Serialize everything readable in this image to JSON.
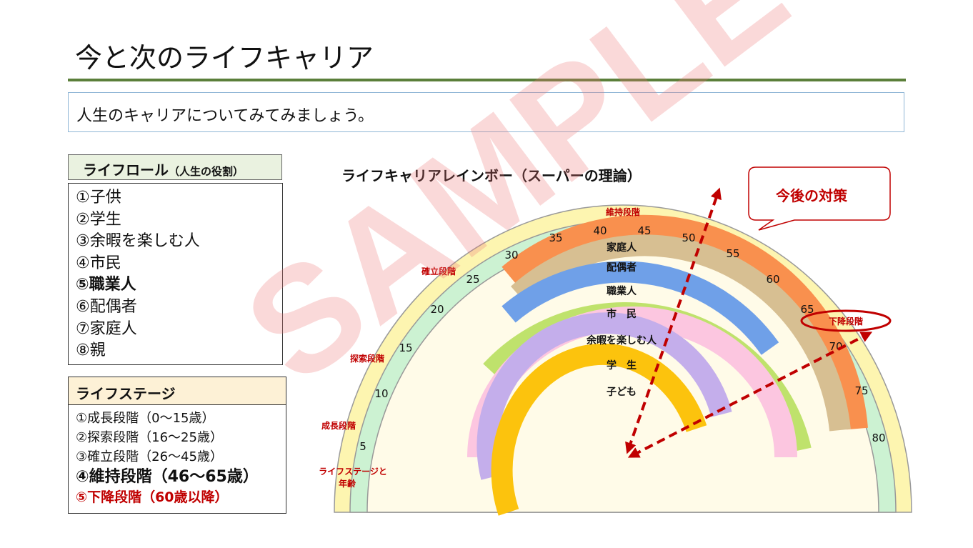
{
  "title": "今と次のライフキャリア",
  "subtitle": "人生のキャリアについてみてみましょう。",
  "life_role": {
    "heading": "ライフロール",
    "heading_note": "（人生の役割）",
    "items": [
      "①子供",
      "②学生",
      "③余暇を楽しむ人",
      "④市民",
      "⑤職業人",
      "⑥配偶者",
      "⑦家庭人",
      "⑧親"
    ]
  },
  "life_stage": {
    "heading": "ライフステージ",
    "items": [
      "①成長段階（0～15歳）",
      "②探索段階（16～25歳）",
      "③確立段階（26～45歳）",
      "④維持段階（46～65歳）",
      "⑤下降段階（60歳以降）"
    ]
  },
  "rainbow": {
    "title": "ライフキャリアレインボー（スーパーの理論）",
    "ages": [
      "5",
      "10",
      "15",
      "20",
      "25",
      "30",
      "35",
      "40",
      "45",
      "50",
      "55",
      "60",
      "65",
      "70",
      "75",
      "80"
    ],
    "roles": [
      "家庭人",
      "配偶者",
      "職業人",
      "市　民",
      "余暇を楽しむ人",
      "学　生",
      "子ども"
    ],
    "stage_labels": [
      "維持段階",
      "確立段階",
      "探索段階",
      "成長段階",
      "下降段階"
    ],
    "axis_label_line1": "ライフステージと",
    "axis_label_line2": "年齢",
    "callout": "今後の対策",
    "colors": {
      "outer_band": "#fdf5b0",
      "age_band": "#ccf2d2",
      "家庭人": "#f9904e",
      "配偶者": "#d7bf92",
      "職業人": "#6fa0e8",
      "市民": "#bfe26c",
      "余暇を楽しむ人": "#fcc6e0",
      "学生": "#c4aeeb",
      "子ども": "#fcc30d",
      "accent_red": "#c00000"
    }
  },
  "watermark": "SAMPLE"
}
